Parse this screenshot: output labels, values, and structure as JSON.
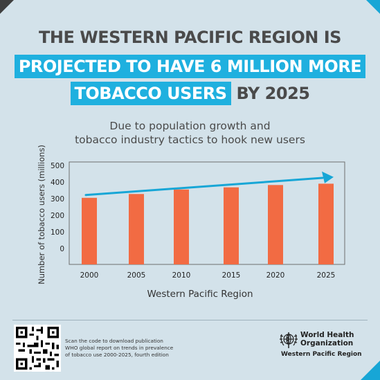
{
  "header": {
    "line1": "THE WESTERN PACIFIC REGION IS",
    "line2_highlight": "PROJECTED TO HAVE 6 MILLION MORE",
    "line3_highlight": "TOBACCO USERS",
    "line3_rest": " BY 2025"
  },
  "subtitle": {
    "line1": "Due to population growth and",
    "line2": "tobacco industry tactics to hook new users"
  },
  "colors": {
    "background": "#d3e2ea",
    "bar": "#f26b43",
    "highlight": "#1fb0df",
    "arrow": "#17a6d6",
    "text": "#4a4a4a"
  },
  "chart_data": {
    "type": "bar",
    "categories": [
      "2000",
      "2005",
      "2010",
      "2015",
      "2020",
      "2025"
    ],
    "values": [
      305,
      328,
      355,
      368,
      382,
      390
    ],
    "xlabel": "Western Pacific Region",
    "ylabel": "Number of tobacco users (millions)",
    "y_ticks": [
      "500",
      "400",
      "300",
      "200",
      "100",
      "0"
    ],
    "ylim": [
      0,
      500
    ],
    "grid": false,
    "annotations": [
      "upward trend arrow from 2000 to 2025"
    ]
  },
  "footer": {
    "scan_lines": [
      "Scan the code to download publication",
      "WHO global report on trends in prevalence",
      "of tobacco use 2000-2025, fourth edition"
    ],
    "org_name_line1": "World Health",
    "org_name_line2": "Organization",
    "org_region": "Western Pacific Region",
    "qr_icon": "qr-code-icon",
    "logo_icon": "who-emblem-icon"
  }
}
